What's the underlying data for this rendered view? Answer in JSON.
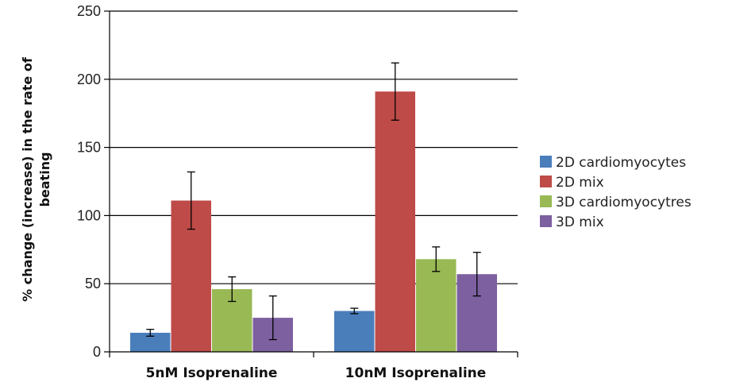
{
  "chart_data": {
    "type": "bar",
    "title": "",
    "xlabel": "",
    "ylabel": "% change (increase) in the rate of beating",
    "ylabel_lines": [
      "% change (increase) in the rate of",
      "beating"
    ],
    "ylim": [
      0,
      250
    ],
    "yticks": [
      0,
      50,
      100,
      150,
      200,
      250
    ],
    "grid": true,
    "legend_position": "right",
    "categories": [
      "5nM Isoprenaline",
      "10nM Isoprenaline"
    ],
    "series": [
      {
        "name": "2D cardiomyocytes",
        "color": "#4a7ebb",
        "values": [
          14,
          30
        ],
        "errors": [
          2.5,
          2
        ]
      },
      {
        "name": "2D mix",
        "color": "#be4b48",
        "values": [
          111,
          191
        ],
        "errors": [
          21,
          21
        ]
      },
      {
        "name": "3D cardiomyocytres",
        "color": "#98b954",
        "values": [
          46,
          68
        ],
        "errors": [
          9,
          9
        ]
      },
      {
        "name": "3D mix",
        "color": "#7d60a0",
        "values": [
          25,
          57
        ],
        "errors": [
          16,
          16
        ]
      }
    ]
  }
}
